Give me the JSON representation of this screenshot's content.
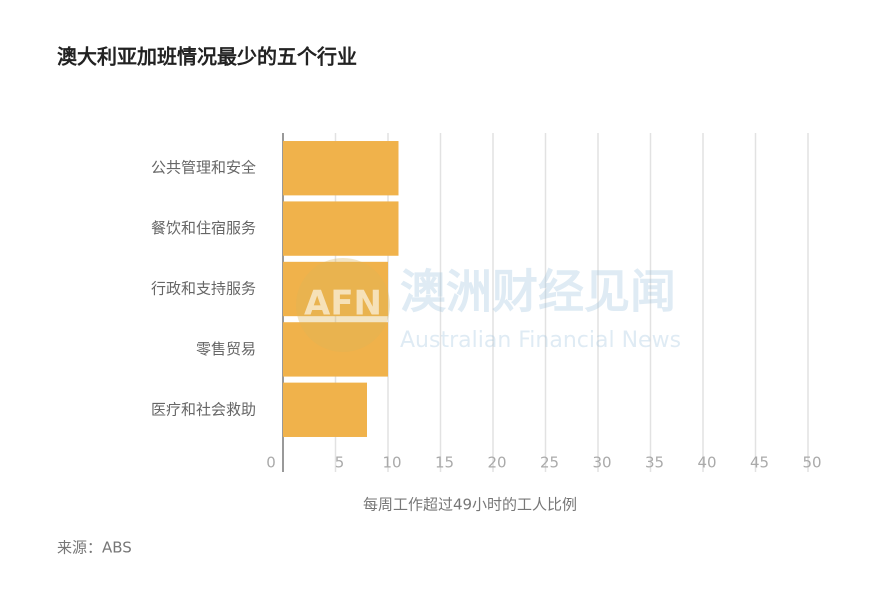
{
  "chart_data": {
    "type": "hbar",
    "title": "澳大利亚加班情况最少的五个行业",
    "categories": [
      "公共管理和安全",
      "餐饮和住宿服务",
      "行政和支持服务",
      "零售贸易",
      "医疗和社会救助"
    ],
    "values": [
      11,
      11,
      10,
      10,
      8
    ],
    "color": "#f0b24b",
    "xlim": [
      0,
      50
    ],
    "xticks": [
      0,
      5,
      10,
      15,
      20,
      25,
      30,
      35,
      40,
      45,
      50
    ],
    "grid": true,
    "xlabel": "每周工作超过49小时的工人比例",
    "source": "来源：ABS",
    "watermark": {
      "logo": "AFN",
      "name": "澳洲财经见闻",
      "subtitle": "Australian Financial News"
    }
  }
}
